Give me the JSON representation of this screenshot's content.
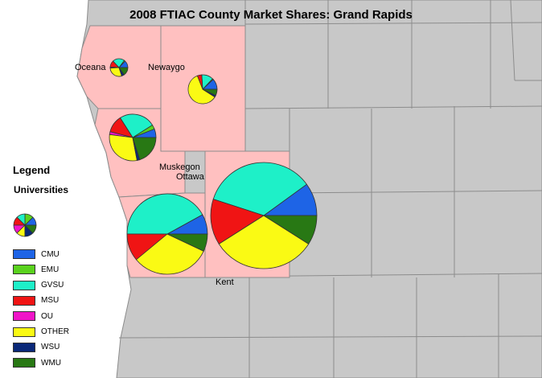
{
  "title": "2008 FTIAC County Market Shares: Grand Rapids",
  "legend": {
    "heading": "Legend",
    "subheading": "Universities",
    "items": [
      {
        "label": "CMU",
        "color": "#1e64e6"
      },
      {
        "label": "EMU",
        "color": "#5ad21e"
      },
      {
        "label": "GVSU",
        "color": "#1ef0c8"
      },
      {
        "label": "MSU",
        "color": "#f01414"
      },
      {
        "label": "OU",
        "color": "#f014c8"
      },
      {
        "label": "OTHER",
        "color": "#fafa14"
      },
      {
        "label": "WSU",
        "color": "#0a2878"
      },
      {
        "label": "WMU",
        "color": "#287814"
      }
    ]
  },
  "colors": {
    "background_counties": "#c8c8c8",
    "highlighted_counties": "#ffc0c0",
    "county_borders": "#8c8c8c",
    "lake": "#ffffff"
  },
  "counties": [
    {
      "name": "Oceana",
      "shares": {
        "CMU": 0.13,
        "EMU": 0.02,
        "GVSU": 0.22,
        "MSU": 0.12,
        "OU": 0.02,
        "OTHER": 0.29,
        "WSU": 0.05,
        "WMU": 0.15
      }
    },
    {
      "name": "Newaygo",
      "shares": {
        "CMU": 0.12,
        "EMU": 0.01,
        "GVSU": 0.13,
        "MSU": 0.05,
        "OU": 0.0,
        "OTHER": 0.6,
        "WSU": 0.02,
        "WMU": 0.07
      }
    },
    {
      "name": "Muskegon",
      "shares": {
        "CMU": 0.06,
        "EMU": 0.03,
        "GVSU": 0.25,
        "MSU": 0.12,
        "OU": 0.02,
        "OTHER": 0.3,
        "WSU": 0.02,
        "WMU": 0.2
      }
    },
    {
      "name": "Ottawa",
      "shares": {
        "CMU": 0.08,
        "EMU": 0.0,
        "GVSU": 0.42,
        "MSU": 0.11,
        "OU": 0.0,
        "OTHER": 0.32,
        "WSU": 0.0,
        "WMU": 0.07
      }
    },
    {
      "name": "Kent",
      "shares": {
        "CMU": 0.1,
        "EMU": 0.0,
        "GVSU": 0.35,
        "MSU": 0.14,
        "OU": 0.0,
        "OTHER": 0.32,
        "WSU": 0.0,
        "WMU": 0.09
      }
    }
  ]
}
